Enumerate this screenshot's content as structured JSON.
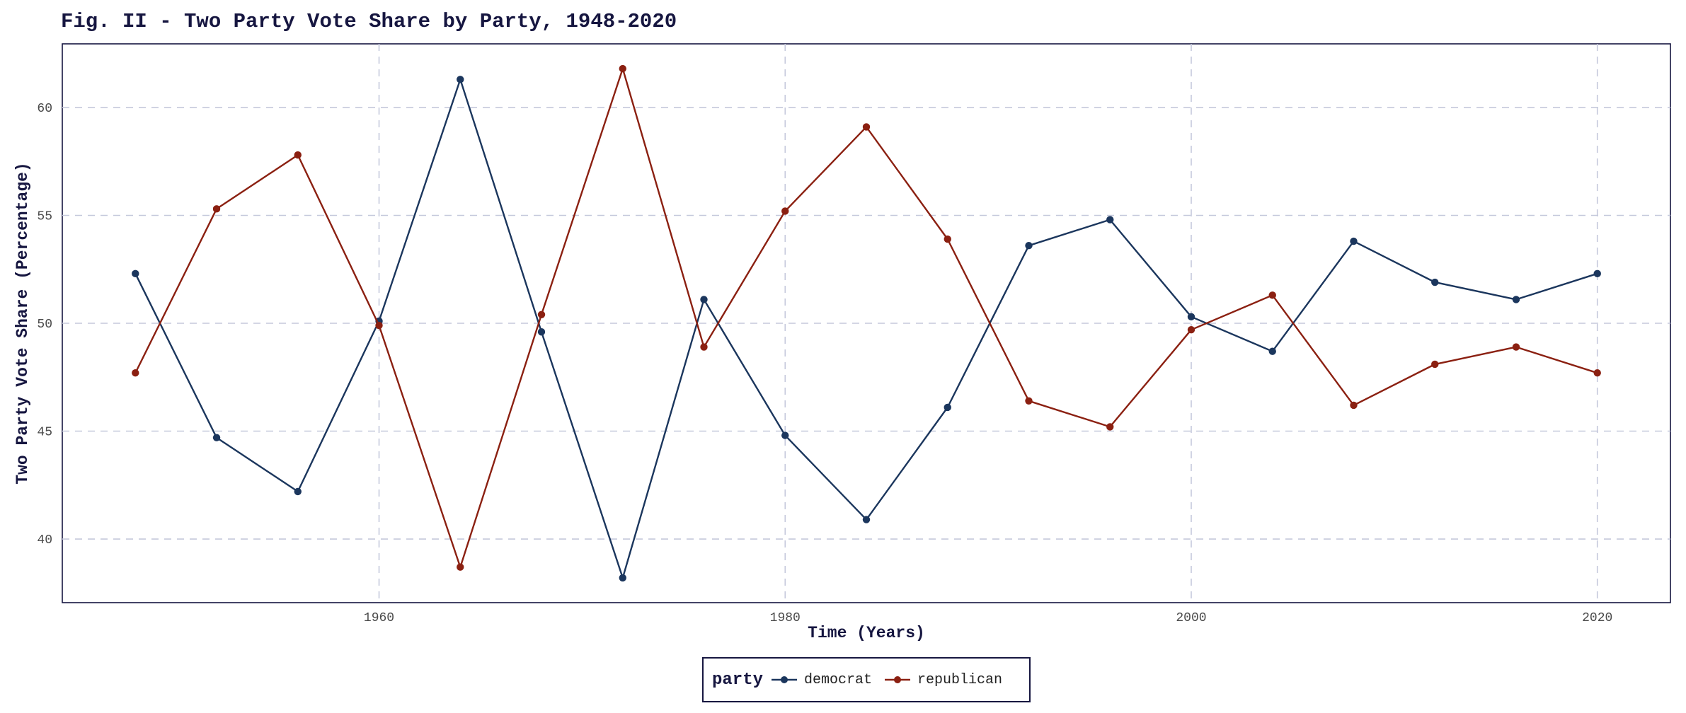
{
  "chart_data": {
    "type": "line",
    "title": "Fig. II - Two Party Vote Share by Party, 1948-2020",
    "xlabel": "Time (Years)",
    "ylabel": "Two Party Vote Share (Percentage)",
    "x": [
      1948,
      1952,
      1956,
      1960,
      1964,
      1968,
      1972,
      1976,
      1980,
      1984,
      1988,
      1992,
      1996,
      2000,
      2004,
      2008,
      2012,
      2016,
      2020
    ],
    "series": [
      {
        "name": "democrat",
        "color": "#1b365d",
        "values": [
          52.3,
          44.7,
          42.2,
          50.1,
          61.3,
          49.6,
          38.2,
          51.1,
          44.8,
          40.9,
          46.1,
          53.6,
          54.8,
          50.3,
          48.7,
          53.8,
          51.9,
          51.1,
          52.3
        ]
      },
      {
        "name": "republican",
        "color": "#8b2011",
        "values": [
          47.7,
          55.3,
          57.8,
          49.9,
          38.7,
          50.4,
          61.8,
          48.9,
          55.2,
          59.1,
          53.9,
          46.4,
          45.2,
          49.7,
          51.3,
          46.2,
          48.1,
          48.9,
          47.7
        ]
      }
    ],
    "xlim": [
      1944.4,
      2023.6
    ],
    "ylim": [
      37.05,
      62.95
    ],
    "x_ticks": [
      "1960",
      "1980",
      "2000",
      "2020"
    ],
    "y_ticks": [
      "40",
      "45",
      "50",
      "55",
      "60"
    ],
    "grid": true,
    "legend": {
      "title": "party",
      "position": "bottom"
    }
  }
}
